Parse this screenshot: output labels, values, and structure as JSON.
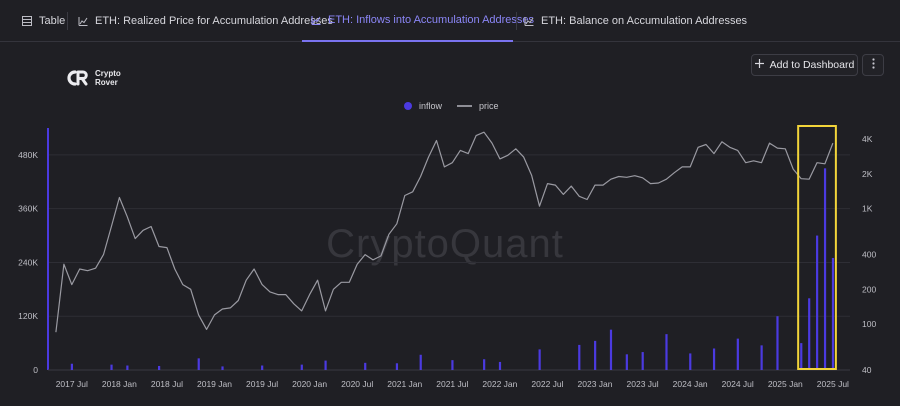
{
  "tabs": [
    {
      "label": "Table",
      "icon": "table-icon"
    },
    {
      "label": "ETH: Realized Price for Accumulation Addresses",
      "icon": "chart-icon"
    },
    {
      "label": "ETH: Inflows into Accumulation Addresses",
      "icon": "chart-icon",
      "active": true
    },
    {
      "label": "ETH: Balance on Accumulation Addresses",
      "icon": "chart-icon"
    }
  ],
  "logo": {
    "line1": "Crypto",
    "line2": "Rover"
  },
  "actions": {
    "add_label": "Add to Dashboard"
  },
  "watermark": "CryptoQuant",
  "colors": {
    "inflow": "#4b3ae0",
    "price": "#9a9aa2",
    "highlight": "#f2d43a",
    "accent": "#7a73f0"
  },
  "chart_data": {
    "type": "bar",
    "legend": [
      "inflow",
      "price"
    ],
    "legend_position": "top-center",
    "grid": true,
    "x_ticks": [
      "2017 Jul",
      "2018 Jan",
      "2018 Jul",
      "2019 Jan",
      "2019 Jul",
      "2020 Jan",
      "2020 Jul",
      "2021 Jan",
      "2021 Jul",
      "2022 Jan",
      "2022 Jul",
      "2023 Jan",
      "2023 Jul",
      "2024 Jan",
      "2024 Jul",
      "2025 Jan",
      "2025 Jul"
    ],
    "y_left_ticks": [
      "0",
      "120K",
      "240K",
      "360K",
      "480K"
    ],
    "y_left_range": [
      0,
      540000
    ],
    "y_right_ticks": [
      "40",
      "100",
      "200",
      "400",
      "1K",
      "2K",
      "4K"
    ],
    "y_right_scale": "log",
    "y_right_range": [
      40,
      5000
    ],
    "series": [
      {
        "name": "price",
        "kind": "line",
        "axis": "right",
        "points": [
          [
            "2017 May",
            85
          ],
          [
            "2017 Jun",
            330
          ],
          [
            "2017 Jul",
            220
          ],
          [
            "2017 Aug",
            300
          ],
          [
            "2017 Sep",
            290
          ],
          [
            "2017 Oct",
            305
          ],
          [
            "2017 Nov",
            400
          ],
          [
            "2017 Dec",
            700
          ],
          [
            "2018 Jan",
            1250
          ],
          [
            "2018 Feb",
            850
          ],
          [
            "2018 Mar",
            550
          ],
          [
            "2018 Apr",
            650
          ],
          [
            "2018 May",
            700
          ],
          [
            "2018 Jun",
            470
          ],
          [
            "2018 Jul",
            460
          ],
          [
            "2018 Aug",
            300
          ],
          [
            "2018 Sep",
            220
          ],
          [
            "2018 Oct",
            200
          ],
          [
            "2018 Nov",
            120
          ],
          [
            "2018 Dec",
            90
          ],
          [
            "2019 Jan",
            120
          ],
          [
            "2019 Feb",
            135
          ],
          [
            "2019 Mar",
            138
          ],
          [
            "2019 Apr",
            160
          ],
          [
            "2019 May",
            240
          ],
          [
            "2019 Jun",
            300
          ],
          [
            "2019 Jul",
            220
          ],
          [
            "2019 Aug",
            190
          ],
          [
            "2019 Sep",
            180
          ],
          [
            "2019 Oct",
            180
          ],
          [
            "2019 Nov",
            150
          ],
          [
            "2019 Dec",
            130
          ],
          [
            "2020 Jan",
            180
          ],
          [
            "2020 Feb",
            240
          ],
          [
            "2020 Mar",
            130
          ],
          [
            "2020 Apr",
            200
          ],
          [
            "2020 May",
            230
          ],
          [
            "2020 Jun",
            230
          ],
          [
            "2020 Jul",
            330
          ],
          [
            "2020 Aug",
            400
          ],
          [
            "2020 Sep",
            360
          ],
          [
            "2020 Oct",
            390
          ],
          [
            "2020 Nov",
            600
          ],
          [
            "2020 Dec",
            740
          ],
          [
            "2021 Jan",
            1300
          ],
          [
            "2021 Feb",
            1400
          ],
          [
            "2021 Mar",
            1900
          ],
          [
            "2021 Apr",
            2800
          ],
          [
            "2021 May",
            3900
          ],
          [
            "2021 Jun",
            2300
          ],
          [
            "2021 Jul",
            2500
          ],
          [
            "2021 Aug",
            3200
          ],
          [
            "2021 Sep",
            3000
          ],
          [
            "2021 Oct",
            4300
          ],
          [
            "2021 Nov",
            4600
          ],
          [
            "2021 Dec",
            3700
          ],
          [
            "2022 Jan",
            2700
          ],
          [
            "2022 Feb",
            2900
          ],
          [
            "2022 Mar",
            3300
          ],
          [
            "2022 Apr",
            2800
          ],
          [
            "2022 May",
            1950
          ],
          [
            "2022 Jun",
            1050
          ],
          [
            "2022 Jul",
            1650
          ],
          [
            "2022 Aug",
            1600
          ],
          [
            "2022 Sep",
            1330
          ],
          [
            "2022 Oct",
            1570
          ],
          [
            "2022 Nov",
            1280
          ],
          [
            "2022 Dec",
            1200
          ],
          [
            "2023 Jan",
            1600
          ],
          [
            "2023 Feb",
            1600
          ],
          [
            "2023 Mar",
            1800
          ],
          [
            "2023 Apr",
            1900
          ],
          [
            "2023 May",
            1870
          ],
          [
            "2023 Jun",
            1930
          ],
          [
            "2023 Jul",
            1850
          ],
          [
            "2023 Aug",
            1650
          ],
          [
            "2023 Sep",
            1670
          ],
          [
            "2023 Oct",
            1800
          ],
          [
            "2023 Nov",
            2050
          ],
          [
            "2023 Dec",
            2300
          ],
          [
            "2024 Jan",
            2300
          ],
          [
            "2024 Feb",
            3400
          ],
          [
            "2024 Mar",
            3600
          ],
          [
            "2024 Apr",
            3000
          ],
          [
            "2024 May",
            3800
          ],
          [
            "2024 Jun",
            3400
          ],
          [
            "2024 Jul",
            3200
          ],
          [
            "2024 Aug",
            2500
          ],
          [
            "2024 Sep",
            2600
          ],
          [
            "2024 Oct",
            2500
          ],
          [
            "2024 Nov",
            3700
          ],
          [
            "2024 Dec",
            3350
          ],
          [
            "2025 Jan",
            3300
          ],
          [
            "2025 Feb",
            2200
          ],
          [
            "2025 Mar",
            1820
          ],
          [
            "2025 Apr",
            1800
          ],
          [
            "2025 May",
            2500
          ],
          [
            "2025 Jun",
            2450
          ],
          [
            "2025 Jul",
            3700
          ]
        ]
      },
      {
        "name": "inflow",
        "kind": "bar",
        "axis": "left",
        "points": [
          [
            "2017 Jul",
            14000
          ],
          [
            "2017 Dec",
            12000
          ],
          [
            "2018 Feb",
            10000
          ],
          [
            "2018 Jun",
            9000
          ],
          [
            "2018 Nov",
            26000
          ],
          [
            "2019 Feb",
            8000
          ],
          [
            "2019 Jul",
            10000
          ],
          [
            "2019 Dec",
            12000
          ],
          [
            "2020 Mar",
            21000
          ],
          [
            "2020 Aug",
            16000
          ],
          [
            "2020 Dec",
            15000
          ],
          [
            "2021 Mar",
            34000
          ],
          [
            "2021 Jul",
            22000
          ],
          [
            "2021 Nov",
            24000
          ],
          [
            "2022 Jan",
            18000
          ],
          [
            "2022 Jun",
            46000
          ],
          [
            "2022 Nov",
            56000
          ],
          [
            "2023 Jan",
            65000
          ],
          [
            "2023 Mar",
            90000
          ],
          [
            "2023 May",
            35000
          ],
          [
            "2023 Jul",
            40000
          ],
          [
            "2023 Oct",
            80000
          ],
          [
            "2024 Jan",
            37000
          ],
          [
            "2024 Apr",
            48000
          ],
          [
            "2024 Jul",
            70000
          ],
          [
            "2024 Oct",
            55000
          ],
          [
            "2024 Dec",
            120000
          ],
          [
            "2025 Mar",
            60000
          ],
          [
            "2025 Apr",
            160000
          ],
          [
            "2025 May",
            300000
          ],
          [
            "2025 Jun",
            450000
          ],
          [
            "2025 Jul",
            250000
          ]
        ]
      }
    ],
    "annotations": [
      {
        "kind": "highlight-box",
        "from": "2025 Mar",
        "to": "2025 Jul",
        "color": "#f2d43a"
      }
    ]
  }
}
